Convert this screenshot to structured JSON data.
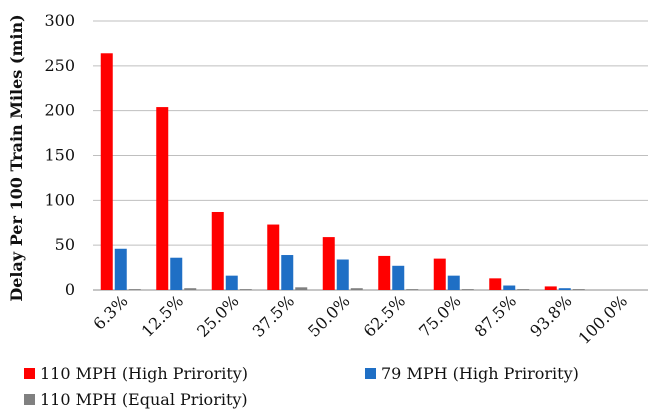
{
  "chart_data": {
    "type": "bar",
    "ylabel": "Delay Per 100 Train Miles (min)",
    "xlabel": "",
    "ylim": [
      0,
      300
    ],
    "yticks": [
      0,
      50,
      100,
      150,
      200,
      250,
      300
    ],
    "grid": "horizontal",
    "legend_position": "bottom",
    "categories": [
      "6.3%",
      "12.5%",
      "25.0%",
      "37.5%",
      "50.0%",
      "62.5%",
      "75.0%",
      "87.5%",
      "93.8%",
      "100.0%"
    ],
    "series": [
      {
        "name": "110 MPH (High Prirority)",
        "color": "#ff0000",
        "values": [
          264,
          204,
          87,
          73,
          59,
          38,
          35,
          13,
          4,
          0
        ]
      },
      {
        "name": "79 MPH (High Prirority)",
        "color": "#1f6fc5",
        "values": [
          46,
          36,
          16,
          39,
          34,
          27,
          16,
          5,
          2,
          0
        ]
      },
      {
        "name": "110 MPH (Equal Priority)",
        "color": "#808080",
        "values": [
          1,
          2,
          1,
          3,
          2,
          1,
          1,
          1,
          1,
          0
        ]
      }
    ]
  }
}
